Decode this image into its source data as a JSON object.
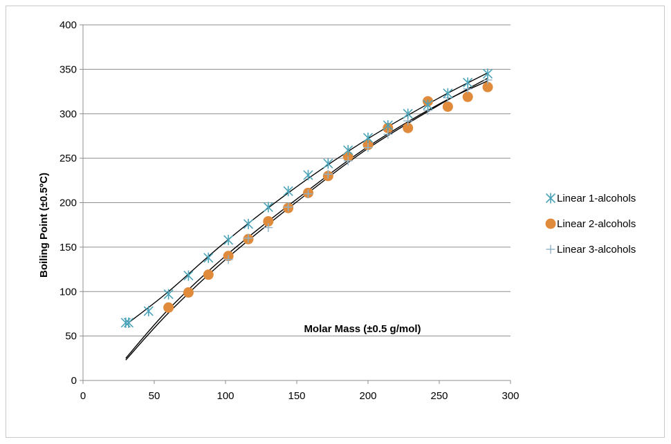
{
  "chart_data": {
    "type": "scatter",
    "title": "",
    "xlabel": "Molar Mass (±0.5 g/mol)",
    "ylabel": "Boiling Point (±0.5ºC)",
    "xlim": [
      0,
      300
    ],
    "ylim": [
      0,
      400
    ],
    "x_ticks": [
      "0",
      "50",
      "100",
      "150",
      "200",
      "250",
      "300"
    ],
    "y_ticks": [
      "0",
      "50",
      "100",
      "150",
      "200",
      "250",
      "300",
      "350",
      "400"
    ],
    "grid": "horizontal",
    "legend_position": "right",
    "series": [
      {
        "name": "Linear 1-alcohols",
        "marker": "asterisk",
        "color": "#4aa3b8",
        "x": [
          30,
          32,
          46,
          60,
          74,
          88,
          102,
          116,
          130,
          144,
          158,
          172,
          186,
          200,
          214,
          228,
          242,
          256,
          270,
          284
        ],
        "y": [
          65,
          65,
          78,
          97,
          118,
          138,
          158,
          176,
          195,
          213,
          231,
          244,
          259,
          273,
          287,
          300,
          310,
          323,
          335,
          345
        ]
      },
      {
        "name": "Linear  2-alcohols",
        "marker": "circle",
        "color": "#e08a3c",
        "x": [
          60,
          74,
          88,
          102,
          116,
          130,
          144,
          158,
          172,
          186,
          200,
          214,
          228,
          242,
          256,
          270,
          284
        ],
        "y": [
          82,
          99,
          119,
          140,
          159,
          179,
          194,
          211,
          230,
          252,
          265,
          284,
          284,
          314,
          308,
          319,
          330
        ]
      },
      {
        "name": "Linear 3-alcohols",
        "marker": "plus",
        "color": "#8eb3c8",
        "x": [
          102,
          116,
          130,
          144,
          158,
          172,
          186,
          200,
          214,
          228,
          242,
          256,
          270,
          284
        ],
        "y": [
          136,
          160,
          172,
          195,
          210,
          232,
          247,
          262,
          277,
          292,
          304,
          318,
          328,
          338
        ]
      }
    ],
    "trendlines": [
      {
        "color": "#000000",
        "x": [
          32,
          60,
          100,
          150,
          200,
          250,
          284
        ],
        "y": [
          65,
          100,
          156,
          218,
          272,
          318,
          346
        ]
      },
      {
        "color": "#000000",
        "x": [
          30,
          60,
          100,
          150,
          200,
          250,
          284
        ],
        "y": [
          25,
          80,
          140,
          204,
          263,
          311,
          337
        ]
      },
      {
        "color": "#000000",
        "x": [
          30,
          60,
          100,
          150,
          200,
          250,
          284
        ],
        "y": [
          23,
          76,
          136,
          201,
          261,
          310,
          340
        ]
      }
    ]
  }
}
